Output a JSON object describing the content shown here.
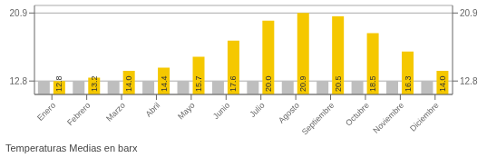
{
  "chart_data": {
    "type": "bar",
    "title": "Temperaturas Medias en barx",
    "categories": [
      "Enero",
      "Febrero",
      "Marzo",
      "Abril",
      "Mayo",
      "Junio",
      "Julio",
      "Agosto",
      "Septiembre",
      "Octubre",
      "Noviembre",
      "Diciembre"
    ],
    "series": [
      {
        "color": "#BEBEBE",
        "values": [
          12.8,
          12.8,
          12.8,
          12.8,
          12.8,
          12.8,
          12.8,
          12.8,
          12.8,
          12.8,
          12.8,
          12.8
        ]
      },
      {
        "color": "#F5C800",
        "values": [
          12.8,
          13.2,
          14.0,
          14.4,
          15.7,
          17.6,
          20.0,
          20.9,
          20.5,
          18.5,
          16.3,
          14.0
        ],
        "data_labels": true,
        "value_labels": [
          "12.8",
          "13.2",
          "14.0",
          "14.4",
          "15.7",
          "17.6",
          "20.0",
          "20.9",
          "20.5",
          "18.5",
          "16.3",
          "14.0"
        ]
      }
    ],
    "ylim": [
      11.2,
      21.8
    ],
    "yticks": [
      12.8,
      20.9
    ],
    "y2lim": [
      11.2,
      21.8
    ],
    "y2ticks": [
      12.8,
      20.9
    ],
    "grid": true
  }
}
